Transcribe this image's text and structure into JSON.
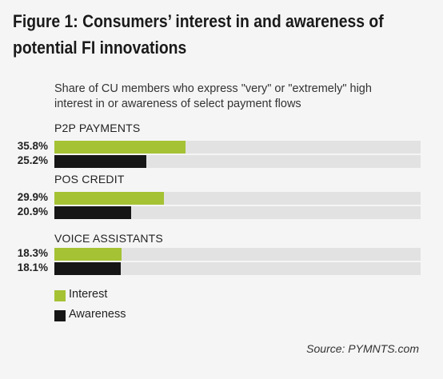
{
  "title_lines": [
    "Figure 1: Consumers’ interest in and awareness of",
    "potential FI innovations"
  ],
  "source": "Source: PYMNTS.com",
  "colors": {
    "interest": "#a5c234",
    "awareness": "#161616",
    "track": "#e2e2e2"
  },
  "chart_data": {
    "type": "bar",
    "orientation": "horizontal",
    "subtitle_lines": [
      "Share of CU members who express \"very\" or \"extremely\" high",
      "interest in or awareness of select payment flows"
    ],
    "categories": [
      "P2P PAYMENTS",
      "POS CREDIT",
      "VOICE ASSISTANTS"
    ],
    "series": [
      {
        "name": "Interest",
        "values": [
          35.8,
          29.9,
          18.3
        ],
        "labels": [
          "35.8%",
          "29.9%",
          "18.3%"
        ]
      },
      {
        "name": "Awareness",
        "values": [
          25.2,
          20.9,
          18.1
        ],
        "labels": [
          "25.2%",
          "20.9%",
          "18.1%"
        ]
      }
    ],
    "xlim": [
      0,
      100
    ],
    "legend_position": "bottom-left",
    "grid": false
  }
}
